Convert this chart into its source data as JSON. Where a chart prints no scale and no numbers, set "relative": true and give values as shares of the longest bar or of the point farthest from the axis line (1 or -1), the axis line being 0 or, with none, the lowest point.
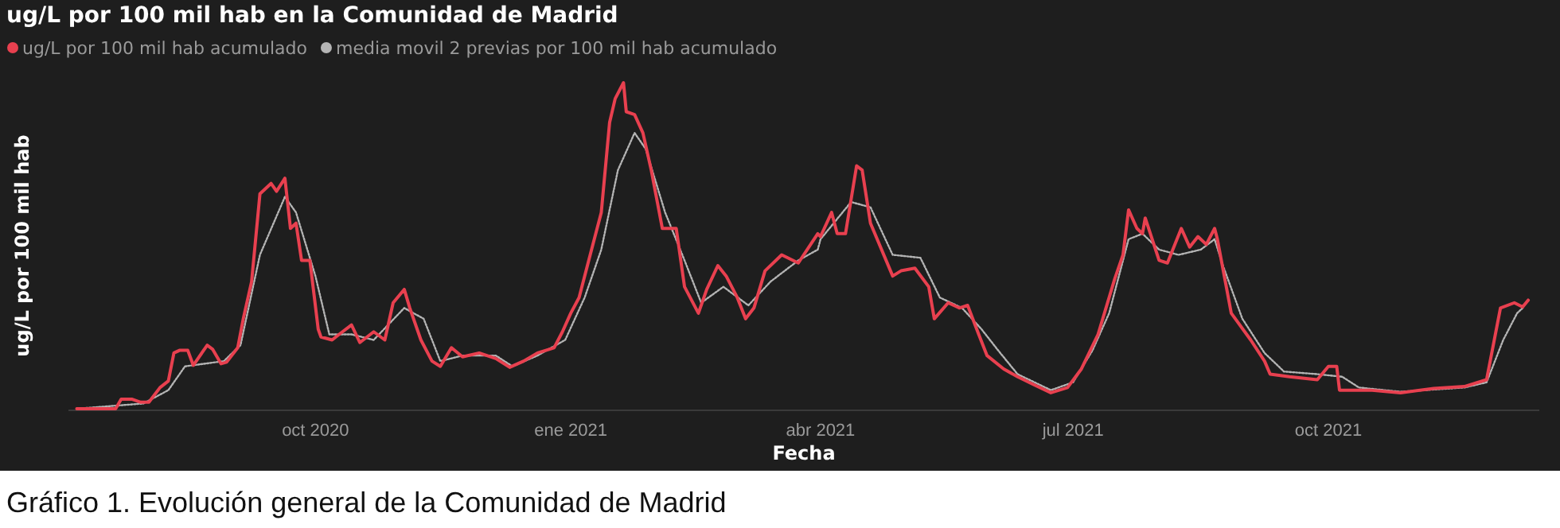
{
  "chart_data": {
    "type": "line",
    "title": "ug/L por 100 mil hab en la Comunidad de Madrid",
    "xlabel": "Fecha",
    "ylabel": "ug/L por 100 mil hab",
    "relative": true,
    "legend": "top left",
    "annotations": [
      "Gráfico 1. Evolución general de la Comunidad de Madrid"
    ],
    "xlim": [
      "2020-07-04",
      "2021-12-16"
    ],
    "xticks": [
      {
        "value": "2020-10-01",
        "label": "oct 2020"
      },
      {
        "value": "2021-01-01",
        "label": "ene 2021"
      },
      {
        "value": "2021-04-01",
        "label": "abr 2021"
      },
      {
        "value": "2021-07-01",
        "label": "jul 2021"
      },
      {
        "value": "2021-10-01",
        "label": "oct 2021"
      }
    ],
    "series": [
      {
        "name": "ug/L por 100 mil hab acumulado",
        "color": "#e8404f",
        "line_style": "solid",
        "x": [
          "2020-07-07",
          "2020-07-21",
          "2020-07-23",
          "2020-07-27",
          "2020-07-30",
          "2020-08-02",
          "2020-08-06",
          "2020-08-09",
          "2020-08-11",
          "2020-08-13",
          "2020-08-16",
          "2020-08-18",
          "2020-08-23",
          "2020-08-25",
          "2020-08-28",
          "2020-08-30",
          "2020-09-03",
          "2020-09-05",
          "2020-09-08",
          "2020-09-11",
          "2020-09-13",
          "2020-09-15",
          "2020-09-17",
          "2020-09-20",
          "2020-09-22",
          "2020-09-24",
          "2020-09-26",
          "2020-09-29",
          "2020-10-02",
          "2020-10-03",
          "2020-10-07",
          "2020-10-10",
          "2020-10-14",
          "2020-10-17",
          "2020-10-22",
          "2020-10-26",
          "2020-10-29",
          "2020-11-02",
          "2020-11-04",
          "2020-11-08",
          "2020-11-12",
          "2020-11-15",
          "2020-11-19",
          "2020-11-23",
          "2020-11-29",
          "2020-12-05",
          "2020-12-10",
          "2020-12-15",
          "2020-12-20",
          "2020-12-26",
          "2020-12-29",
          "2021-01-01",
          "2021-01-04",
          "2021-01-08",
          "2021-01-12",
          "2021-01-15",
          "2021-01-17",
          "2021-01-20",
          "2021-01-21",
          "2021-01-24",
          "2021-01-27",
          "2021-01-30",
          "2021-02-03",
          "2021-02-08",
          "2021-02-11",
          "2021-02-16",
          "2021-02-19",
          "2021-02-23",
          "2021-02-26",
          "2021-03-02",
          "2021-03-05",
          "2021-03-08",
          "2021-03-12",
          "2021-03-18",
          "2021-03-24",
          "2021-03-31",
          "2021-04-01",
          "2021-04-05",
          "2021-04-07",
          "2021-04-10",
          "2021-04-14",
          "2021-04-16",
          "2021-04-19",
          "2021-04-27",
          "2021-04-30",
          "2021-05-05",
          "2021-05-10",
          "2021-05-12",
          "2021-05-17",
          "2021-05-21",
          "2021-05-24",
          "2021-05-28",
          "2021-05-31",
          "2021-06-06",
          "2021-06-11",
          "2021-06-17",
          "2021-06-23",
          "2021-06-29",
          "2021-07-04",
          "2021-07-10",
          "2021-07-16",
          "2021-07-19",
          "2021-07-21",
          "2021-07-24",
          "2021-07-26",
          "2021-07-27",
          "2021-08-01",
          "2021-08-04",
          "2021-08-09",
          "2021-08-12",
          "2021-08-15",
          "2021-08-18",
          "2021-08-21",
          "2021-08-22",
          "2021-08-27",
          "2021-09-03",
          "2021-09-08",
          "2021-09-10",
          "2021-09-17",
          "2021-09-27",
          "2021-10-01",
          "2021-10-04",
          "2021-10-05",
          "2021-10-16",
          "2021-10-27",
          "2021-11-08",
          "2021-11-19",
          "2021-11-27",
          "2021-12-02",
          "2021-12-07",
          "2021-12-10",
          "2021-12-12"
        ],
        "values": [
          0,
          0,
          0.029,
          0.029,
          0.02,
          0.02,
          0.065,
          0.085,
          0.171,
          0.179,
          0.179,
          0.133,
          0.195,
          0.182,
          0.138,
          0.143,
          0.187,
          0.276,
          0.39,
          0.659,
          0.675,
          0.691,
          0.667,
          0.707,
          0.553,
          0.569,
          0.455,
          0.455,
          0.244,
          0.22,
          0.211,
          0.231,
          0.257,
          0.203,
          0.236,
          0.211,
          0.325,
          0.366,
          0.309,
          0.211,
          0.146,
          0.13,
          0.187,
          0.159,
          0.171,
          0.154,
          0.127,
          0.146,
          0.171,
          0.187,
          0.236,
          0.293,
          0.341,
          0.472,
          0.602,
          0.878,
          0.951,
          1.0,
          0.911,
          0.902,
          0.846,
          0.732,
          0.553,
          0.553,
          0.374,
          0.293,
          0.366,
          0.439,
          0.407,
          0.341,
          0.276,
          0.309,
          0.423,
          0.472,
          0.447,
          0.537,
          0.528,
          0.602,
          0.537,
          0.537,
          0.745,
          0.732,
          0.569,
          0.407,
          0.423,
          0.431,
          0.374,
          0.276,
          0.325,
          0.309,
          0.317,
          0.228,
          0.163,
          0.122,
          0.098,
          0.073,
          0.049,
          0.065,
          0.122,
          0.228,
          0.398,
          0.472,
          0.61,
          0.553,
          0.537,
          0.585,
          0.455,
          0.447,
          0.553,
          0.496,
          0.528,
          0.504,
          0.553,
          0.52,
          0.293,
          0.211,
          0.146,
          0.106,
          0.098,
          0.089,
          0.13,
          0.13,
          0.057,
          0.057,
          0.049,
          0.062,
          0.068,
          0.089,
          0.309,
          0.325,
          0.312,
          0.333
        ]
      },
      {
        "name": "media movil 2 previas por 100 mil hab acumulado",
        "color": "#b4b4b4",
        "line_style": "dotted",
        "x": [
          "2020-07-07",
          "2020-07-31",
          "2020-08-09",
          "2020-08-15",
          "2020-08-29",
          "2020-09-04",
          "2020-09-11",
          "2020-09-20",
          "2020-09-24",
          "2020-10-01",
          "2020-10-06",
          "2020-10-14",
          "2020-10-22",
          "2020-11-02",
          "2020-11-09",
          "2020-11-15",
          "2020-11-23",
          "2020-12-05",
          "2020-12-11",
          "2020-12-20",
          "2020-12-30",
          "2021-01-06",
          "2021-01-12",
          "2021-01-18",
          "2021-01-24",
          "2021-01-28",
          "2021-02-04",
          "2021-02-11",
          "2021-02-17",
          "2021-02-25",
          "2021-03-06",
          "2021-03-14",
          "2021-03-24",
          "2021-03-31",
          "2021-04-01",
          "2021-04-12",
          "2021-04-19",
          "2021-04-27",
          "2021-05-07",
          "2021-05-14",
          "2021-05-22",
          "2021-05-29",
          "2021-06-04",
          "2021-06-11",
          "2021-06-23",
          "2021-07-01",
          "2021-07-08",
          "2021-07-14",
          "2021-07-21",
          "2021-07-26",
          "2021-08-01",
          "2021-08-08",
          "2021-08-16",
          "2021-08-21",
          "2021-08-24",
          "2021-08-31",
          "2021-09-08",
          "2021-09-15",
          "2021-09-27",
          "2021-10-06",
          "2021-10-12",
          "2021-10-27",
          "2021-11-19",
          "2021-11-27",
          "2021-12-03",
          "2021-12-08",
          "2021-12-10"
        ],
        "values": [
          0,
          0.016,
          0.057,
          0.13,
          0.146,
          0.195,
          0.472,
          0.65,
          0.602,
          0.407,
          0.228,
          0.228,
          0.211,
          0.309,
          0.276,
          0.146,
          0.163,
          0.163,
          0.13,
          0.163,
          0.211,
          0.341,
          0.488,
          0.732,
          0.846,
          0.797,
          0.602,
          0.455,
          0.325,
          0.374,
          0.317,
          0.39,
          0.455,
          0.488,
          0.52,
          0.634,
          0.618,
          0.472,
          0.463,
          0.341,
          0.309,
          0.244,
          0.179,
          0.106,
          0.057,
          0.081,
          0.179,
          0.293,
          0.52,
          0.537,
          0.488,
          0.472,
          0.488,
          0.52,
          0.439,
          0.276,
          0.171,
          0.114,
          0.106,
          0.098,
          0.065,
          0.052,
          0.065,
          0.081,
          0.211,
          0.293,
          0.309
        ]
      }
    ]
  }
}
